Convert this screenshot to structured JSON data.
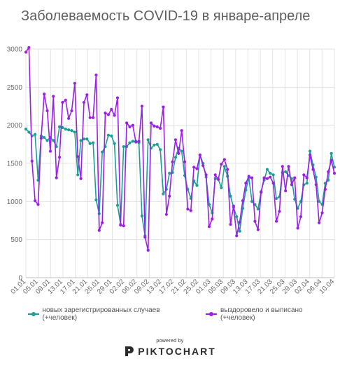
{
  "chart_data": {
    "type": "line",
    "title": "Заболеваемость COVID-19 в январе-апреле",
    "ylim": [
      0,
      3000
    ],
    "y_ticks": [
      0,
      500,
      1000,
      1500,
      2000,
      2500,
      3000
    ],
    "x_tick_labels": [
      "01.01",
      "05.01",
      "09.01",
      "13.01",
      "17.01",
      "21.01",
      "25.01",
      "29.01",
      "02.02",
      "06.02",
      "09.02",
      "13.02",
      "17.02",
      "21.02",
      "25.02",
      "01.03",
      "05.03",
      "09.03",
      "13.03",
      "17.03",
      "21.03",
      "25.03",
      "29.03",
      "02.04",
      "06.04",
      "10.04"
    ],
    "grid": true,
    "legend_position": "bottom",
    "series": [
      {
        "name": "новых зарегистрированных случаев (+человек)",
        "color": "#1a9e96",
        "values": [
          1950,
          1910,
          1860,
          1880,
          1280,
          1860,
          1840,
          1800,
          1840,
          1800,
          1720,
          1980,
          1970,
          1950,
          1940,
          1930,
          1910,
          1350,
          1800,
          1820,
          1820,
          1760,
          1770,
          1020,
          840,
          1650,
          1720,
          1870,
          1860,
          1760,
          950,
          700,
          1720,
          1720,
          1770,
          1790,
          1790,
          1770,
          810,
          550,
          1810,
          1700,
          1740,
          1750,
          1680,
          1100,
          1160,
          1370,
          1380,
          1580,
          1700,
          1660,
          1340,
          1160,
          1040,
          1270,
          1210,
          1610,
          1500,
          1320,
          960,
          850,
          1300,
          1290,
          1180,
          1460,
          1330,
          1070,
          920,
          800,
          610,
          910,
          1150,
          1310,
          1000,
          960,
          900,
          1130,
          1280,
          1420,
          1370,
          1350,
          1040,
          1060,
          1380,
          1390,
          1340,
          1300,
          1030,
          910,
          1000,
          1220,
          1240,
          1660,
          1480,
          1320,
          1000,
          960,
          1240,
          1280,
          1630,
          1450
        ]
      },
      {
        "name": "выздоровело и выписано (+человек)",
        "color": "#9b1fe8",
        "values": [
          2960,
          3020,
          1530,
          1010,
          960,
          1830,
          2410,
          2190,
          1660,
          2380,
          1310,
          1580,
          2300,
          2330,
          2090,
          2190,
          2550,
          1590,
          1300,
          2300,
          2400,
          2100,
          2100,
          2660,
          620,
          720,
          2160,
          2140,
          2210,
          2130,
          2360,
          690,
          680,
          2030,
          1980,
          2000,
          1780,
          1790,
          2250,
          530,
          360,
          2030,
          1990,
          1980,
          1960,
          2240,
          830,
          1070,
          1520,
          1810,
          1630,
          1930,
          1520,
          900,
          880,
          1450,
          1430,
          1610,
          1470,
          1350,
          670,
          770,
          1350,
          1290,
          1490,
          1550,
          1420,
          700,
          940,
          550,
          730,
          1010,
          1240,
          1330,
          1310,
          740,
          630,
          1120,
          1310,
          1300,
          1320,
          1240,
          740,
          870,
          1460,
          1140,
          1460,
          1220,
          1310,
          650,
          800,
          1350,
          1310,
          1610,
          1420,
          1220,
          720,
          850,
          1160,
          1390,
          1540,
          1370
        ]
      }
    ]
  },
  "branding": {
    "powered_by": "powered by",
    "logo_text": "PIKTOCHART"
  },
  "colors": {
    "grid": "#e3e3e3",
    "axis": "#bdbdbd",
    "title": "#5f5f5f"
  }
}
